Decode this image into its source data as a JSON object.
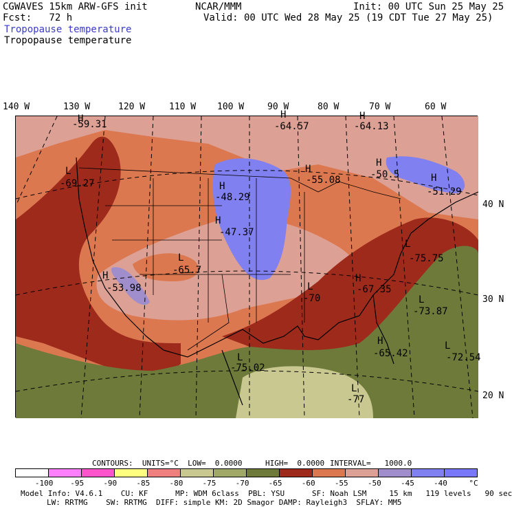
{
  "header": {
    "title_left": "CGWAVES 15km ARW-GFS init",
    "center": "NCAR/MMM",
    "init": "Init: 00 UTC Sun 25 May 25",
    "fcst": "Fcst:   72 h",
    "valid": "Valid: 00 UTC Wed 28 May 25 (19 CDT Tue 27 May 25)",
    "field1": "Tropopause temperature",
    "field2": "Tropopause temperature"
  },
  "longitudes": [
    "140 W",
    "130 W",
    "120 W",
    "110 W",
    "100 W",
    "90 W",
    "80 W",
    "70 W",
    "60 W"
  ],
  "latitudes": [
    "40 N",
    "30 N",
    "20 N"
  ],
  "map_labels": [
    {
      "type": "H",
      "value": "-59.31"
    },
    {
      "type": "L",
      "value": "-69.27"
    },
    {
      "type": "H",
      "value": "-64.57"
    },
    {
      "type": "H",
      "value": "-64.13"
    },
    {
      "type": "H",
      "value": "-48.29"
    },
    {
      "type": "H",
      "value": "-47.37"
    },
    {
      "type": "H",
      "value": "-55.08"
    },
    {
      "type": "H",
      "value": "-50.5"
    },
    {
      "type": "H",
      "value": "-51.29"
    },
    {
      "type": "L",
      "value": "-65.7"
    },
    {
      "type": "H",
      "value": "-53.98"
    },
    {
      "type": "L",
      "value": "-75.75"
    },
    {
      "type": "L",
      "value": "-73.87"
    },
    {
      "type": "H",
      "value": "-65.42"
    },
    {
      "type": "L",
      "value": "-72.54"
    },
    {
      "type": "L",
      "value": "-75.02"
    },
    {
      "type": "L",
      "value": "-77"
    },
    {
      "type": "H",
      "value": "-67.35"
    },
    {
      "type": "L",
      "value": "-70"
    }
  ],
  "contour_info": {
    "contours": "CONTOURS:  UNITS=°C  LOW=  0.0000",
    "high": "HIGH=  0.0000",
    "interval": "INTERVAL=   1000.0"
  },
  "colorbar": {
    "colors": [
      "#ffffff",
      "#ff80ff",
      "#ff55cc",
      "#ffff80",
      "#f08080",
      "#c8c890",
      "#a0a868",
      "#6e7a3a",
      "#9e2a1c",
      "#dc7850",
      "#dca094",
      "#a08ecc",
      "#8080f0",
      "#7878f8"
    ],
    "ticks": [
      "-100",
      "-95",
      "-90",
      "-85",
      "-80",
      "-75",
      "-70",
      "-65",
      "-60",
      "-55",
      "-50",
      "-45",
      "-40",
      "°C"
    ]
  },
  "footer": {
    "line1": "Model Info: V4.6.1    CU: KF      MP: WDM 6class  PBL: YSU      SF: Noah LSM     15 km   119 levels   90 sec",
    "line2": "LW: RRTMG    SW: RRTMG  DIFF: simple KM: 2D Smagor DAMP: Rayleigh3  SFLAY: MM5"
  }
}
